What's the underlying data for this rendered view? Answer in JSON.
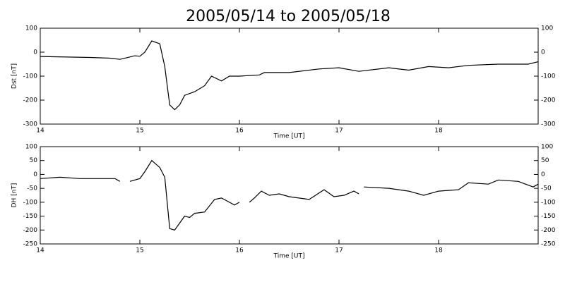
{
  "title": "2005/05/14 to 2005/05/18",
  "chart_data": [
    {
      "type": "line",
      "y_label": "Dst [nT]",
      "x_label": "Time [UT]",
      "xlim": [
        14,
        19
      ],
      "xticks": [
        14,
        15,
        16,
        17,
        18
      ],
      "ylim": [
        -300,
        100
      ],
      "yticks": [
        100,
        0,
        -100,
        -200,
        -300
      ],
      "series": [
        {
          "name": "Dst",
          "color": "#000000",
          "x": [
            14.0,
            14.5,
            14.7,
            14.8,
            14.9,
            14.95,
            15.0,
            15.05,
            15.12,
            15.2,
            15.25,
            15.3,
            15.35,
            15.4,
            15.45,
            15.55,
            15.65,
            15.72,
            15.82,
            15.9,
            16.0,
            16.2,
            16.25,
            16.5,
            16.8,
            17.0,
            17.2,
            17.5,
            17.7,
            17.9,
            18.1,
            18.3,
            18.6,
            18.9,
            19.0
          ],
          "values": [
            -18,
            -22,
            -25,
            -30,
            -20,
            -15,
            -17,
            0,
            47,
            35,
            -60,
            -220,
            -240,
            -220,
            -180,
            -165,
            -140,
            -100,
            -120,
            -100,
            -100,
            -95,
            -85,
            -85,
            -70,
            -65,
            -80,
            -65,
            -75,
            -60,
            -65,
            -55,
            -50,
            -50,
            -40
          ]
        }
      ]
    },
    {
      "type": "line",
      "y_label": "DH [nT]",
      "x_label": "Time [UT]",
      "xlim": [
        14,
        19
      ],
      "xticks": [
        14,
        15,
        16,
        17,
        18
      ],
      "ylim": [
        -250,
        100
      ],
      "yticks": [
        100,
        50,
        0,
        -50,
        -100,
        -150,
        -200,
        -250
      ],
      "series": [
        {
          "name": "DH",
          "color": "#000000",
          "x": [
            14.0,
            14.2,
            14.4,
            14.6,
            14.75,
            14.8,
            14.85,
            14.9,
            15.0,
            15.05,
            15.12,
            15.2,
            15.25,
            15.3,
            15.35,
            15.45,
            15.5,
            15.55,
            15.65,
            15.75,
            15.82,
            15.9,
            15.95,
            16.0,
            16.05,
            16.1,
            16.15,
            16.22,
            16.3,
            16.4,
            16.5,
            16.7,
            16.85,
            16.95,
            17.05,
            17.15,
            17.2,
            17.22,
            17.25,
            17.5,
            17.7,
            17.85,
            18.0,
            18.2,
            18.3,
            18.5,
            18.6,
            18.8,
            18.95,
            19.0
          ],
          "values": [
            -15,
            -10,
            -15,
            -15,
            -15,
            -25,
            null,
            -25,
            -15,
            10,
            50,
            25,
            -10,
            -195,
            -200,
            -150,
            -155,
            -140,
            -135,
            -90,
            -85,
            -100,
            -110,
            -100,
            null,
            -100,
            -85,
            -60,
            -75,
            -70,
            -80,
            -90,
            -55,
            -80,
            -75,
            -60,
            -70,
            null,
            -45,
            -50,
            -60,
            -75,
            -60,
            -55,
            -30,
            -35,
            -20,
            -25,
            -45,
            -35
          ]
        }
      ]
    }
  ]
}
